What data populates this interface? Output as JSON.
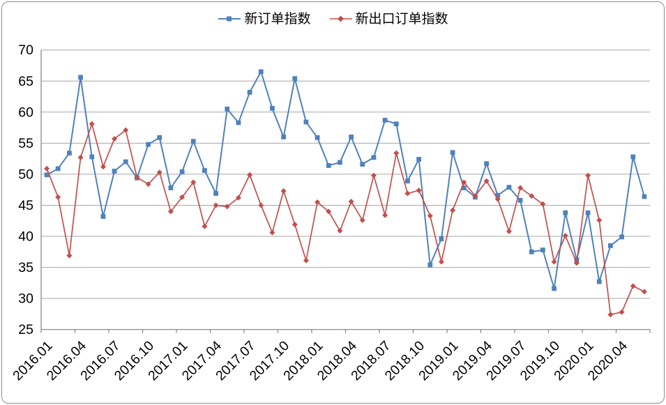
{
  "figure": {
    "background": "#ffffff",
    "border_color": "#8c8c8c"
  },
  "legend": {
    "position": "top-center",
    "items": [
      {
        "label": "新订单指数",
        "color": "#4F81BD",
        "marker": "square"
      },
      {
        "label": "新出口订单指数",
        "color": "#C0504D",
        "marker": "diamond"
      }
    ]
  },
  "chart_data": {
    "type": "line",
    "title": "",
    "xlabel": "",
    "ylabel": "",
    "ylim": [
      25,
      70
    ],
    "y_step": 5,
    "grid": true,
    "grid_color": "#A6A6A6",
    "axis_color": "#808080",
    "x_tick_label_every": 3,
    "x_labels": [
      "2016.01",
      "2016.02",
      "2016.03",
      "2016.04",
      "2016.05",
      "2016.06",
      "2016.07",
      "2016.08",
      "2016.09",
      "2016.10",
      "2016.11",
      "2016.12",
      "2017.01",
      "2017.02",
      "2017.03",
      "2017.04",
      "2017.05",
      "2017.06",
      "2017.07",
      "2017.08",
      "2017.09",
      "2017.10",
      "2017.11",
      "2017.12",
      "2018.01",
      "2018.02",
      "2018.03",
      "2018.04",
      "2018.05",
      "2018.06",
      "2018.07",
      "2018.08",
      "2018.09",
      "2018.10",
      "2018.11",
      "2018.12",
      "2019.01",
      "2019.02",
      "2019.03",
      "2019.04",
      "2019.05",
      "2019.06",
      "2019.07",
      "2019.08",
      "2019.09",
      "2019.10",
      "2019.11",
      "2019.12",
      "2020.01",
      "2020.02",
      "2020.03",
      "2020.04",
      "2020.05",
      "2020.06"
    ],
    "series": [
      {
        "name": "新订单指数",
        "color": "#4F81BD",
        "marker": "square",
        "values": [
          49.9,
          50.9,
          53.4,
          65.6,
          52.8,
          43.2,
          50.5,
          52.0,
          49.4,
          54.8,
          55.9,
          47.8,
          50.4,
          55.3,
          50.6,
          46.9,
          60.5,
          58.3,
          63.2,
          66.5,
          60.6,
          56.0,
          65.4,
          58.4,
          55.9,
          51.4,
          51.9,
          56.0,
          51.6,
          52.7,
          58.7,
          58.1,
          48.9,
          52.4,
          35.4,
          39.6,
          53.5,
          47.8,
          46.3,
          51.7,
          46.6,
          47.9,
          45.8,
          37.5,
          37.8,
          31.6,
          43.8,
          36.2,
          43.8,
          32.7,
          38.5,
          39.9,
          52.8,
          46.4
        ]
      },
      {
        "name": "新出口订单指数",
        "color": "#C0504D",
        "marker": "diamond",
        "values": [
          50.9,
          46.3,
          36.9,
          52.7,
          58.1,
          51.2,
          55.7,
          57.1,
          49.5,
          48.4,
          50.3,
          44.0,
          46.3,
          48.7,
          41.6,
          45.0,
          44.8,
          46.2,
          49.9,
          45.0,
          40.6,
          47.3,
          41.9,
          36.1,
          45.5,
          44.0,
          40.9,
          45.6,
          42.6,
          49.8,
          43.4,
          53.4,
          46.9,
          47.4,
          43.3,
          35.9,
          44.2,
          48.7,
          46.5,
          48.9,
          46.0,
          40.8,
          47.8,
          46.5,
          45.2,
          35.9,
          40.1,
          35.7,
          49.8,
          42.6,
          27.4,
          27.8,
          32.0,
          31.1
        ]
      }
    ]
  }
}
